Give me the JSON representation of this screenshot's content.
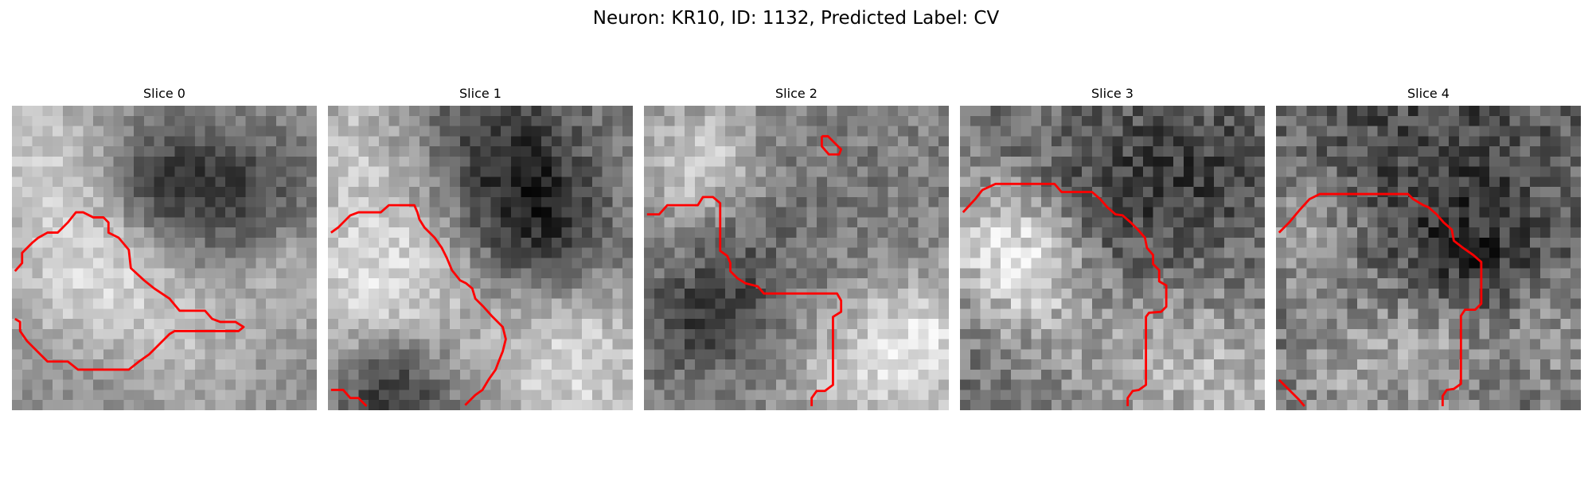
{
  "figure": {
    "title": "Neuron: KR10, ID: 1132, Predicted Label: CV"
  },
  "panels": [
    {
      "title": "Slice 0",
      "grid_size": 30,
      "contour_color": "#ff0000",
      "colormap": "gray"
    },
    {
      "title": "Slice 1",
      "grid_size": 30,
      "contour_color": "#ff0000",
      "colormap": "gray"
    },
    {
      "title": "Slice 2",
      "grid_size": 30,
      "contour_color": "#ff0000",
      "colormap": "gray"
    },
    {
      "title": "Slice 3",
      "grid_size": 30,
      "contour_color": "#ff0000",
      "colormap": "gray"
    },
    {
      "title": "Slice 4",
      "grid_size": 30,
      "contour_color": "#ff0000",
      "colormap": "gray"
    }
  ]
}
